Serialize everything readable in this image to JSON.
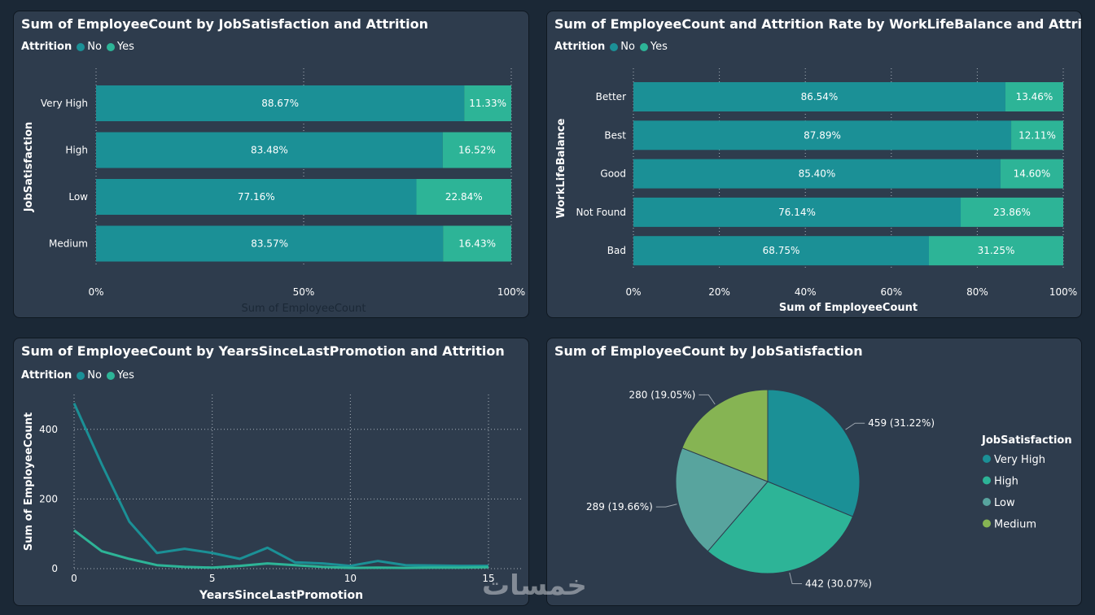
{
  "colors": {
    "no": "#1b9096",
    "yes": "#2db497",
    "low": "#58a49e",
    "medium": "#86b453"
  },
  "panels": {
    "p1": {
      "title": "Sum of EmployeeCount by JobSatisfaction and Attrition"
    },
    "p2": {
      "title": "Sum of EmployeeCount and Attrition Rate by WorkLifeBalance and Attrition"
    },
    "p3": {
      "title": "Sum of EmployeeCount by YearsSinceLastPromotion and Attrition"
    },
    "p4": {
      "title": "Sum of EmployeeCount by JobSatisfaction"
    }
  },
  "legend": {
    "title": "Attrition",
    "no": "No",
    "yes": "Yes"
  },
  "watermark": "خمسات",
  "chart_data": [
    {
      "type": "bar",
      "stacked_percent": true,
      "orientation": "horizontal",
      "title": "Sum of EmployeeCount by JobSatisfaction and Attrition",
      "categories": [
        "Very High",
        "High",
        "Low",
        "Medium"
      ],
      "series": [
        {
          "name": "No",
          "values": [
            88.67,
            83.48,
            77.16,
            83.57
          ],
          "labels": [
            "88.67%",
            "83.48%",
            "77.16%",
            "83.57%"
          ]
        },
        {
          "name": "Yes",
          "values": [
            11.33,
            16.52,
            22.84,
            16.43
          ],
          "labels": [
            "11.33%",
            "16.52%",
            "22.84%",
            "16.43%"
          ]
        }
      ],
      "xlabel": "Sum of EmployeeCount",
      "ylabel": "JobSatisfaction",
      "xticks": [
        "0%",
        "50%",
        "100%"
      ],
      "xlim": [
        0,
        100
      ],
      "grid": true,
      "legend": "top-left"
    },
    {
      "type": "bar",
      "stacked_percent": true,
      "orientation": "horizontal",
      "title": "Sum of EmployeeCount and Attrition Rate by WorkLifeBalance and Attrition",
      "categories": [
        "Better",
        "Best",
        "Good",
        "Not Found",
        "Bad"
      ],
      "series": [
        {
          "name": "No",
          "values": [
            86.54,
            87.89,
            85.4,
            76.14,
            68.75
          ],
          "labels": [
            "86.54%",
            "87.89%",
            "85.40%",
            "76.14%",
            "68.75%"
          ]
        },
        {
          "name": "Yes",
          "values": [
            13.46,
            12.11,
            14.6,
            23.86,
            31.25
          ],
          "labels": [
            "13.46%",
            "12.11%",
            "14.60%",
            "23.86%",
            "31.25%"
          ]
        }
      ],
      "xlabel": "Sum of EmployeeCount",
      "ylabel": "WorkLifeBalance",
      "xticks": [
        "0%",
        "20%",
        "40%",
        "60%",
        "80%",
        "100%"
      ],
      "xlim": [
        0,
        100
      ],
      "grid": true,
      "legend": "top-left"
    },
    {
      "type": "line",
      "title": "Sum of EmployeeCount by YearsSinceLastPromotion and Attrition",
      "x": [
        0,
        1,
        2,
        3,
        4,
        5,
        6,
        7,
        8,
        9,
        10,
        11,
        12,
        13,
        14,
        15
      ],
      "series": [
        {
          "name": "No",
          "values": [
            475,
            300,
            135,
            45,
            57,
            45,
            28,
            60,
            18,
            15,
            8,
            22,
            10,
            9,
            8,
            8
          ]
        },
        {
          "name": "Yes",
          "values": [
            110,
            50,
            28,
            10,
            5,
            3,
            8,
            15,
            10,
            5,
            2,
            3,
            2,
            3,
            3,
            4
          ]
        }
      ],
      "xlabel": "YearsSinceLastPromotion",
      "ylabel": "Sum of EmployeeCount",
      "xticks": [
        "0",
        "5",
        "10",
        "15"
      ],
      "yticks": [
        "0",
        "200",
        "400"
      ],
      "xlim": [
        0,
        15
      ],
      "ylim": [
        0,
        500
      ],
      "grid": true,
      "legend": "top-left"
    },
    {
      "type": "pie",
      "title": "Sum of EmployeeCount by JobSatisfaction",
      "categories": [
        "Very High",
        "High",
        "Low",
        "Medium"
      ],
      "values": [
        459,
        442,
        289,
        280
      ],
      "labels": [
        "459 (31.22%)",
        "442 (30.07%)",
        "289 (19.66%)",
        "280 (19.05%)"
      ],
      "legend_title": "JobSatisfaction",
      "legend": "right"
    }
  ]
}
